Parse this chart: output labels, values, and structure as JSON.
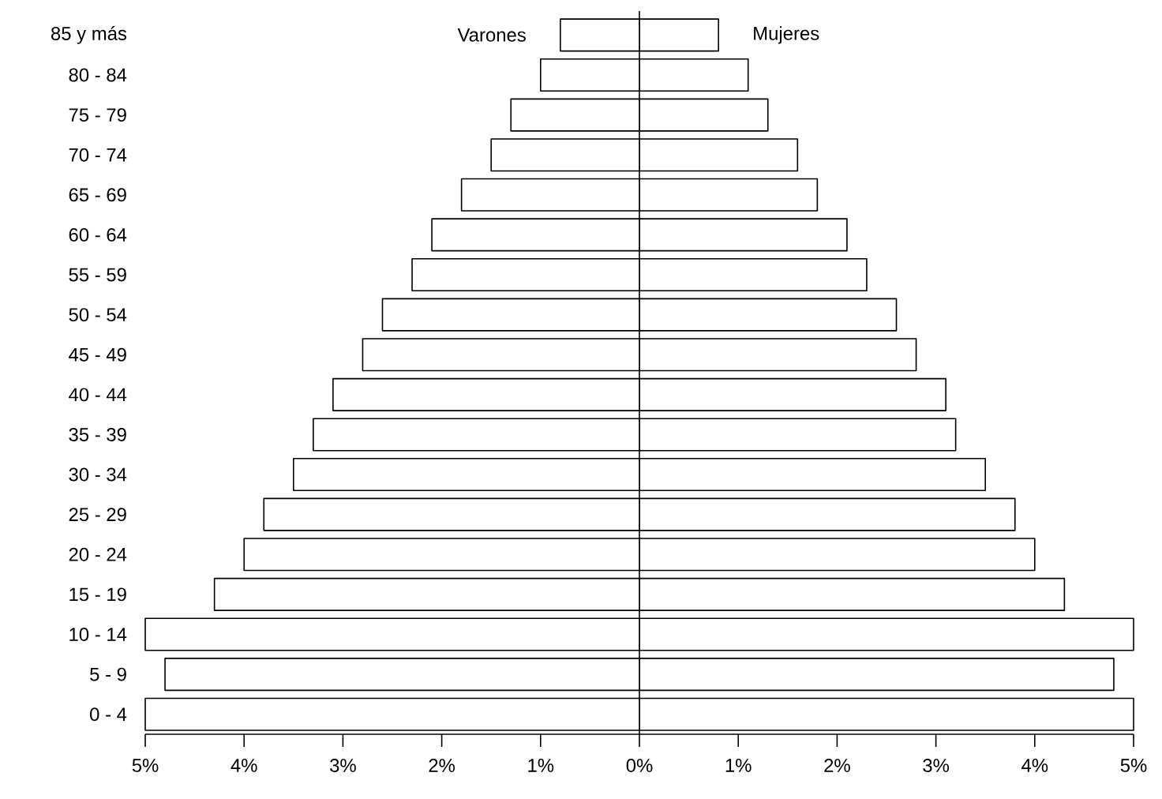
{
  "chart_data": {
    "type": "bar",
    "orientation": "horizontal",
    "stacked": true,
    "categories": [
      "85 y más",
      "80 - 84",
      "75 - 79",
      "70 - 74",
      "65 - 69",
      "60 - 64",
      "55 - 59",
      "50 - 54",
      "45 - 49",
      "40 - 44",
      "35 - 39",
      "30 - 34",
      "25 - 29",
      "20 - 24",
      "15 - 19",
      "10 - 14",
      "5 - 9",
      "0 - 4"
    ],
    "series": [
      {
        "name": "Varones",
        "color": "#ffffff",
        "values": [
          -0.8,
          -1.0,
          -1.3,
          -1.5,
          -1.8,
          -2.1,
          -2.3,
          -2.6,
          -2.8,
          -3.1,
          -3.3,
          -3.5,
          -3.8,
          -4.0,
          -4.3,
          -5.0,
          -4.8,
          -5.0
        ]
      },
      {
        "name": "Mujeres",
        "color": "#ffffff",
        "values": [
          0.8,
          1.1,
          1.3,
          1.6,
          1.8,
          2.1,
          2.3,
          2.6,
          2.8,
          3.1,
          3.2,
          3.5,
          3.8,
          4.0,
          4.3,
          5.0,
          4.8,
          5.0
        ]
      }
    ],
    "xlim": [
      -5,
      5
    ],
    "xticks": [
      {
        "value": -5,
        "label": "5%"
      },
      {
        "value": -4,
        "label": "4%"
      },
      {
        "value": -3,
        "label": "3%"
      },
      {
        "value": -2,
        "label": "2%"
      },
      {
        "value": -1,
        "label": "1%"
      },
      {
        "value": 0,
        "label": "0%"
      },
      {
        "value": 1,
        "label": "1%"
      },
      {
        "value": 2,
        "label": "2%"
      },
      {
        "value": 3,
        "label": "3%"
      },
      {
        "value": 4,
        "label": "4%"
      },
      {
        "value": 5,
        "label": "5%"
      }
    ],
    "legend": false
  }
}
